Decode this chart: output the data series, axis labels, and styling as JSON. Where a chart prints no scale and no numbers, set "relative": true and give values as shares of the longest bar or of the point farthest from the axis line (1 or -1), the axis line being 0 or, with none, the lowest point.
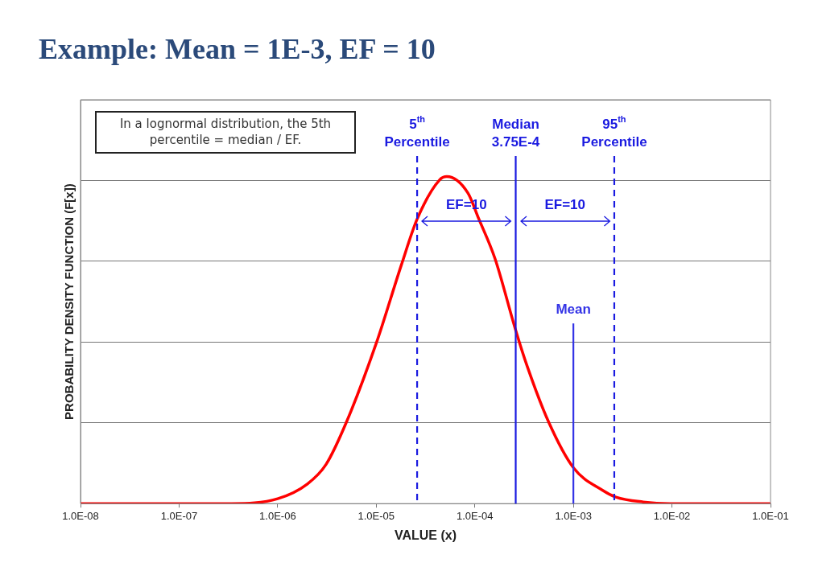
{
  "chart_data": {
    "type": "line",
    "title": "Example: Mean = 1E-3, EF = 10",
    "xlabel": "VALUE (x)",
    "ylabel": "PROBABILITY DENSITY FUNCTION (F[x])",
    "relative": true,
    "log": "x",
    "grid": "y",
    "legend": false,
    "marker": "none",
    "line_style": "solid",
    "xlim": [
      1e-08,
      0.1
    ],
    "xticks": [
      {
        "value": 1e-08,
        "label": "1.0E-08"
      },
      {
        "value": 1e-07,
        "label": "1.0E-07"
      },
      {
        "value": 1e-06,
        "label": "1.0E-06"
      },
      {
        "value": 1e-05,
        "label": "1.0E-05"
      },
      {
        "value": 0.0001,
        "label": "1.0E-04"
      },
      {
        "value": 0.001,
        "label": "1.0E-03"
      },
      {
        "value": 0.01,
        "label": "1.0E-02"
      },
      {
        "value": 0.1,
        "label": "1.0E-01"
      }
    ],
    "series": [
      {
        "color": "#ff0000",
        "x": [
          1e-08,
          1e-07,
          3.4e-07,
          1e-06,
          2e-06,
          3.1e-06,
          5e-06,
          1e-05,
          1.8e-05,
          2.6e-05,
          4.4e-05,
          5.2e-05,
          8.5e-05,
          0.00011,
          0.00016,
          0.00026,
          0.00034,
          0.00056,
          0.001,
          0.002,
          0.0027,
          0.0051,
          0.0096,
          0.1
        ],
        "values": [
          0,
          0,
          0,
          0.015,
          0.06,
          0.12,
          0.25,
          0.49,
          0.73,
          0.87,
          0.99,
          1,
          0.95,
          0.87,
          0.75,
          0.53,
          0.42,
          0.25,
          0.11,
          0.04,
          0.02,
          0.005,
          0,
          0
        ]
      }
    ],
    "ref_lines": [
      {
        "axis": "x",
        "value": 2.6e-05,
        "label": "5$^{th}$ Percentile",
        "color": "#1a1ae0",
        "line_style": "dashed"
      },
      {
        "axis": "x",
        "value": 0.00026,
        "label": "Median 3.75E-4",
        "color": "#1a1ae0",
        "line_style": "solid"
      },
      {
        "axis": "x",
        "value": 0.001,
        "label": "Mean",
        "color": "#3333e6",
        "line_style": "solid"
      },
      {
        "axis": "x",
        "value": 0.0026,
        "label": "95$^{th}$ Percentile",
        "color": "#1a1ae0",
        "line_style": "dashed"
      }
    ],
    "annotations": [
      "In a lognormal distribution, the 5th percentile = median / EF.",
      "EF=10",
      "EF=10"
    ]
  }
}
